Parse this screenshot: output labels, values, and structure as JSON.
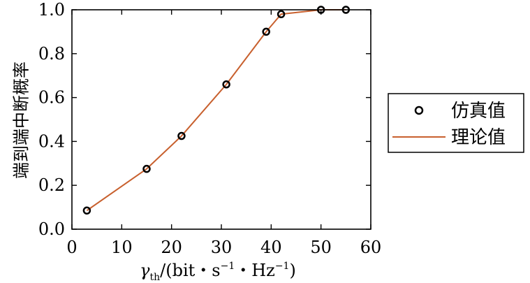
{
  "chart_data": {
    "type": "line",
    "xlabel": "γth/(bit・s−1・Hz−1)",
    "ylabel": "端到端中断概率",
    "xlim": [
      0,
      60
    ],
    "ylim": [
      0,
      1.0
    ],
    "x_ticks": [
      0,
      10,
      20,
      30,
      40,
      50,
      60
    ],
    "y_ticks": [
      0.0,
      0.2,
      0.4,
      0.6,
      0.8,
      1.0
    ],
    "x_tick_labels": [
      "0",
      "10",
      "20",
      "30",
      "40",
      "50",
      "60"
    ],
    "y_tick_labels": [
      "0.0",
      "0.2",
      "0.4",
      "0.6",
      "0.8",
      "1.0"
    ],
    "grid": false,
    "legend_position": "outside-right",
    "series": [
      {
        "name": "仿真值",
        "style": "markers",
        "marker": "circle-open",
        "color": "#000000",
        "x": [
          3,
          15,
          22,
          31,
          39,
          42,
          50,
          55
        ],
        "y": [
          0.085,
          0.275,
          0.425,
          0.66,
          0.9,
          0.98,
          1.0,
          1.0
        ]
      },
      {
        "name": "理论值",
        "style": "line",
        "color": "#c8602e",
        "x": [
          3,
          15,
          22,
          31,
          39,
          42,
          50,
          55
        ],
        "y": [
          0.085,
          0.275,
          0.425,
          0.66,
          0.9,
          0.98,
          1.0,
          1.0
        ]
      }
    ]
  }
}
